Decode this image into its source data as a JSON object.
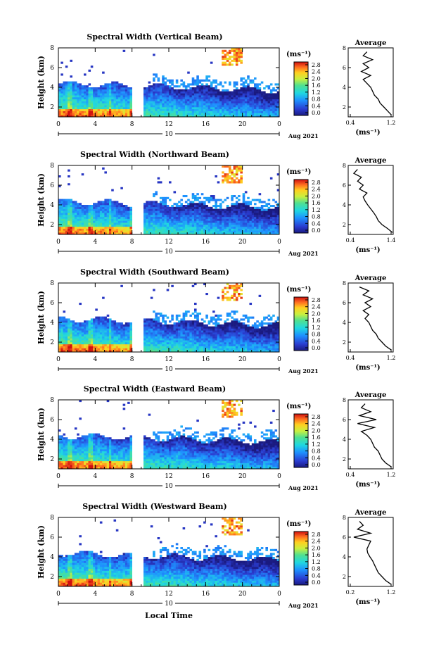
{
  "figure": {
    "xlabel": "Local Time",
    "colorbar_unit": "(ms⁻¹)",
    "colorbar_ticks": [
      "0.0",
      "0.4",
      "0.8",
      "1.2",
      "1.6",
      "2.0",
      "2.4",
      "2.8"
    ],
    "date_label": "Aug 2021",
    "day_label": "10",
    "average_title": "Average"
  },
  "chart_data": [
    {
      "type": "heatmap",
      "title": "Spectral Width (Vertical Beam)",
      "ylabel": "Height (km)",
      "x_ticks": [
        "0",
        "4",
        "8",
        "12",
        "16",
        "20",
        "0"
      ],
      "y_ticks": [
        "2",
        "4",
        "6",
        "8"
      ],
      "xlim": [
        0,
        24
      ],
      "ylim": [
        1,
        8
      ],
      "zlim": [
        0,
        3.0
      ],
      "data_gap_hours": [
        8,
        9.2
      ],
      "average": {
        "xlabel": "(ms⁻¹)",
        "x_ticks": [
          "0.4",
          "1.2"
        ],
        "xlim": [
          0.2,
          1.4
        ],
        "heights": [
          1.2,
          1.6,
          2.0,
          2.4,
          2.8,
          3.2,
          3.6,
          4.0,
          4.4,
          4.8,
          5.2,
          5.6,
          6.0,
          6.4,
          6.8,
          7.2,
          7.6
        ],
        "values": [
          1.35,
          1.25,
          1.15,
          1.05,
          1.0,
          0.9,
          0.85,
          0.8,
          0.7,
          0.6,
          0.8,
          0.55,
          0.75,
          0.6,
          0.85,
          0.6,
          0.7
        ]
      }
    },
    {
      "type": "heatmap",
      "title": "Spectral Width (Northward Beam)",
      "ylabel": "Height (km)",
      "x_ticks": [
        "0",
        "4",
        "8",
        "12",
        "16",
        "20",
        "0"
      ],
      "y_ticks": [
        "2",
        "4",
        "6",
        "8"
      ],
      "xlim": [
        0,
        24
      ],
      "ylim": [
        1,
        8
      ],
      "zlim": [
        0,
        3.0
      ],
      "data_gap_hours": [
        8,
        9.2
      ],
      "average": {
        "xlabel": "(ms⁻¹)",
        "x_ticks": [
          "0.4",
          "1.4"
        ],
        "xlim": [
          0.2,
          1.4
        ],
        "heights": [
          1.2,
          1.6,
          2.0,
          2.4,
          2.8,
          3.2,
          3.6,
          4.0,
          4.4,
          4.8,
          5.2,
          5.6,
          6.0,
          6.4,
          6.8,
          7.2,
          7.6
        ],
        "values": [
          1.38,
          1.25,
          1.1,
          1.0,
          0.95,
          0.88,
          0.8,
          0.72,
          0.65,
          0.6,
          0.7,
          0.5,
          0.6,
          0.45,
          0.55,
          0.35,
          0.45
        ]
      }
    },
    {
      "type": "heatmap",
      "title": "Spectral Width (Southward Beam)",
      "ylabel": "Height (km)",
      "x_ticks": [
        "0",
        "4",
        "8",
        "12",
        "16",
        "20",
        "0"
      ],
      "y_ticks": [
        "2",
        "4",
        "6",
        "8"
      ],
      "xlim": [
        0,
        24
      ],
      "ylim": [
        1,
        8
      ],
      "zlim": [
        0,
        3.0
      ],
      "data_gap_hours": [
        8,
        9.2
      ],
      "average": {
        "xlabel": "(ms⁻¹)",
        "x_ticks": [
          "0.4",
          "1.2"
        ],
        "xlim": [
          0.2,
          1.4
        ],
        "heights": [
          1.2,
          1.6,
          2.0,
          2.4,
          2.8,
          3.2,
          3.6,
          4.0,
          4.4,
          4.8,
          5.2,
          5.6,
          6.0,
          6.4,
          6.8,
          7.2,
          7.6
        ],
        "values": [
          1.35,
          1.2,
          1.1,
          1.0,
          0.95,
          0.85,
          0.8,
          0.75,
          0.65,
          0.75,
          0.6,
          0.8,
          0.65,
          0.85,
          0.6,
          0.75,
          0.5
        ]
      }
    },
    {
      "type": "heatmap",
      "title": "Spectral Width (Eastward Beam)",
      "ylabel": "Height (km)",
      "x_ticks": [
        "0",
        "4",
        "8",
        "12",
        "16",
        "20",
        "0"
      ],
      "y_ticks": [
        "2",
        "4",
        "6",
        "8"
      ],
      "xlim": [
        0,
        24
      ],
      "ylim": [
        1,
        8
      ],
      "zlim": [
        0,
        3.0
      ],
      "data_gap_hours": [
        8,
        9.2
      ],
      "average": {
        "xlabel": "(ms⁻¹)",
        "x_ticks": [
          "0.4",
          "1.2"
        ],
        "xlim": [
          0.2,
          1.4
        ],
        "heights": [
          1.2,
          1.6,
          2.0,
          2.4,
          2.8,
          3.2,
          3.6,
          4.0,
          4.4,
          4.8,
          5.2,
          5.6,
          6.0,
          6.4,
          6.8,
          7.2,
          7.6
        ],
        "values": [
          1.35,
          1.2,
          1.1,
          1.05,
          1.0,
          0.9,
          0.85,
          0.8,
          0.7,
          0.55,
          0.9,
          0.45,
          0.95,
          0.5,
          0.8,
          0.55,
          0.65
        ]
      }
    },
    {
      "type": "heatmap",
      "title": "Spectral Width (Westward Beam)",
      "ylabel": "Height (km)",
      "x_ticks": [
        "0",
        "4",
        "8",
        "12",
        "16",
        "20",
        "0"
      ],
      "y_ticks": [
        "2",
        "4",
        "6",
        "8"
      ],
      "xlim": [
        0,
        24
      ],
      "ylim": [
        1,
        8
      ],
      "zlim": [
        0,
        3.0
      ],
      "data_gap_hours": [
        8,
        9.2
      ],
      "average": {
        "xlabel": "(ms⁻¹)",
        "x_ticks": [
          "0.2",
          "1.2"
        ],
        "xlim": [
          0.2,
          1.4
        ],
        "heights": [
          1.2,
          1.6,
          2.0,
          2.4,
          2.8,
          3.2,
          3.6,
          4.0,
          4.4,
          4.8,
          5.2,
          5.6,
          6.0,
          6.4,
          6.8,
          7.2,
          7.6
        ],
        "values": [
          1.35,
          1.2,
          1.1,
          1.0,
          0.95,
          0.9,
          0.85,
          0.78,
          0.72,
          0.7,
          0.75,
          0.8,
          0.35,
          0.8,
          0.45,
          0.6,
          0.5
        ]
      }
    }
  ]
}
